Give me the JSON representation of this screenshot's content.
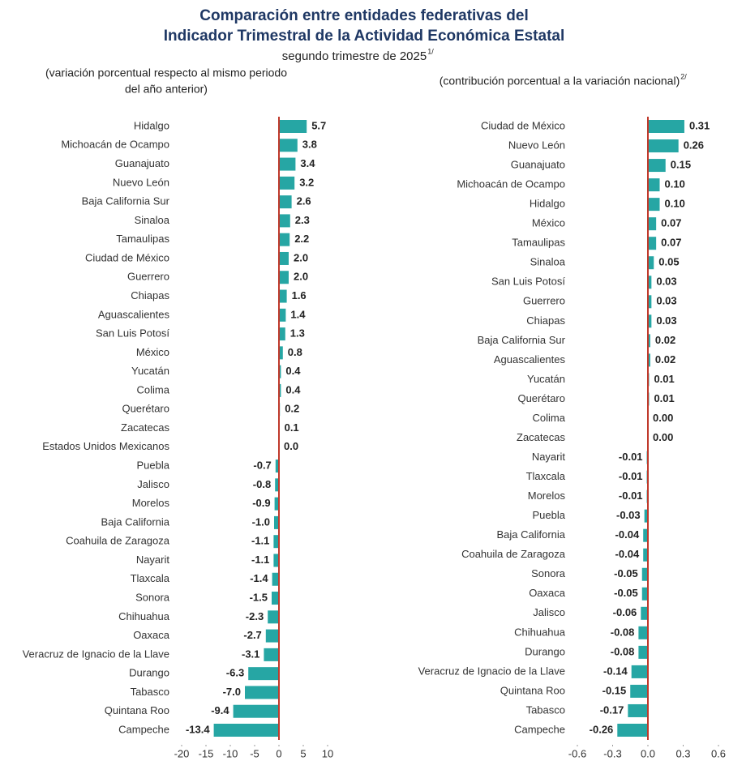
{
  "title": [
    "Comparación entre entidades federativas del",
    "Indicador Trimestral de la Actividad Económica Estatal"
  ],
  "subtitle": "segundo trimestre de 2025",
  "subtitle_note": "1/",
  "chart_data": [
    {
      "type": "bar",
      "orientation": "horizontal",
      "subtitle": [
        "(variación porcentual respecto al mismo periodo",
        "del año anterior)"
      ],
      "color": "#26a6a4",
      "zero_line_color": "#c0392b",
      "categories": [
        "Hidalgo",
        "Michoacán de Ocampo",
        "Guanajuato",
        "Nuevo León",
        "Baja California Sur",
        "Sinaloa",
        "Tamaulipas",
        "Ciudad de México",
        "Guerrero",
        "Chiapas",
        "Aguascalientes",
        "San Luis Potosí",
        "México",
        "Yucatán",
        "Colima",
        "Querétaro",
        "Zacatecas",
        "Estados Unidos Mexicanos",
        "Puebla",
        "Jalisco",
        "Morelos",
        "Baja California",
        "Coahuila de Zaragoza",
        "Nayarit",
        "Tlaxcala",
        "Sonora",
        "Chihuahua",
        "Oaxaca",
        "Veracruz de Ignacio de la Llave",
        "Durango",
        "Tabasco",
        "Quintana Roo",
        "Campeche"
      ],
      "values": [
        5.7,
        3.8,
        3.4,
        3.2,
        2.6,
        2.3,
        2.2,
        2.0,
        2.0,
        1.6,
        1.4,
        1.3,
        0.8,
        0.4,
        0.4,
        0.2,
        0.1,
        0.0,
        -0.7,
        -0.8,
        -0.9,
        -1.0,
        -1.1,
        -1.1,
        -1.4,
        -1.5,
        -2.3,
        -2.7,
        -3.1,
        -6.3,
        -7.0,
        -9.4,
        -13.4
      ],
      "value_labels": [
        "5.7",
        "3.8",
        "3.4",
        "3.2",
        "2.6",
        "2.3",
        "2.2",
        "2.0",
        "2.0",
        "1.6",
        "1.4",
        "1.3",
        "0.8",
        "0.4",
        "0.4",
        "0.2",
        "0.1",
        "0.0",
        "-0.7",
        "-0.8",
        "-0.9",
        "-1.0",
        "-1.1",
        "-1.1",
        "-1.4",
        "-1.5",
        "-2.3",
        "-2.7",
        "-3.1",
        "-6.3",
        "-7.0",
        "-9.4",
        "-13.4"
      ],
      "xlim": [
        -20,
        10
      ],
      "xticks": [
        -20,
        -15,
        -10,
        -5,
        0,
        5,
        10
      ]
    },
    {
      "type": "bar",
      "orientation": "horizontal",
      "subtitle": [
        "(contribución porcentual a la variación nacional)"
      ],
      "subtitle_note": "2/",
      "color": "#26a6a4",
      "zero_line_color": "#c0392b",
      "categories": [
        "Ciudad de México",
        "Nuevo León",
        "Guanajuato",
        "Michoacán de Ocampo",
        "Hidalgo",
        "México",
        "Tamaulipas",
        "Sinaloa",
        "San Luis Potosí",
        "Guerrero",
        "Chiapas",
        "Baja California Sur",
        "Aguascalientes",
        "Yucatán",
        "Querétaro",
        "Colima",
        "Zacatecas",
        "Nayarit",
        "Tlaxcala",
        "Morelos",
        "Puebla",
        "Baja California",
        "Coahuila de Zaragoza",
        "Sonora",
        "Oaxaca",
        "Jalisco",
        "Chihuahua",
        "Durango",
        "Veracruz de Ignacio de la Llave",
        "Quintana Roo",
        "Tabasco",
        "Campeche"
      ],
      "values": [
        0.31,
        0.26,
        0.15,
        0.1,
        0.1,
        0.07,
        0.07,
        0.05,
        0.03,
        0.03,
        0.03,
        0.02,
        0.02,
        0.01,
        0.01,
        0.0,
        0.0,
        -0.01,
        -0.01,
        -0.01,
        -0.03,
        -0.04,
        -0.04,
        -0.05,
        -0.05,
        -0.06,
        -0.08,
        -0.08,
        -0.14,
        -0.15,
        -0.17,
        -0.26
      ],
      "value_labels": [
        "0.31",
        "0.26",
        "0.15",
        "0.10",
        "0.10",
        "0.07",
        "0.07",
        "0.05",
        "0.03",
        "0.03",
        "0.03",
        "0.02",
        "0.02",
        "0.01",
        "0.01",
        "0.00",
        "0.00",
        "-0.01",
        "-0.01",
        "-0.01",
        "-0.03",
        "-0.04",
        "-0.04",
        "-0.05",
        "-0.05",
        "-0.06",
        "-0.08",
        "-0.08",
        "-0.14",
        "-0.15",
        "-0.17",
        "-0.26"
      ],
      "xlim": [
        -0.6,
        0.6
      ],
      "xticks": [
        -0.6,
        -0.3,
        {
          "value": 0,
          "label": "0.0"
        },
        0.3,
        0.6
      ]
    }
  ]
}
